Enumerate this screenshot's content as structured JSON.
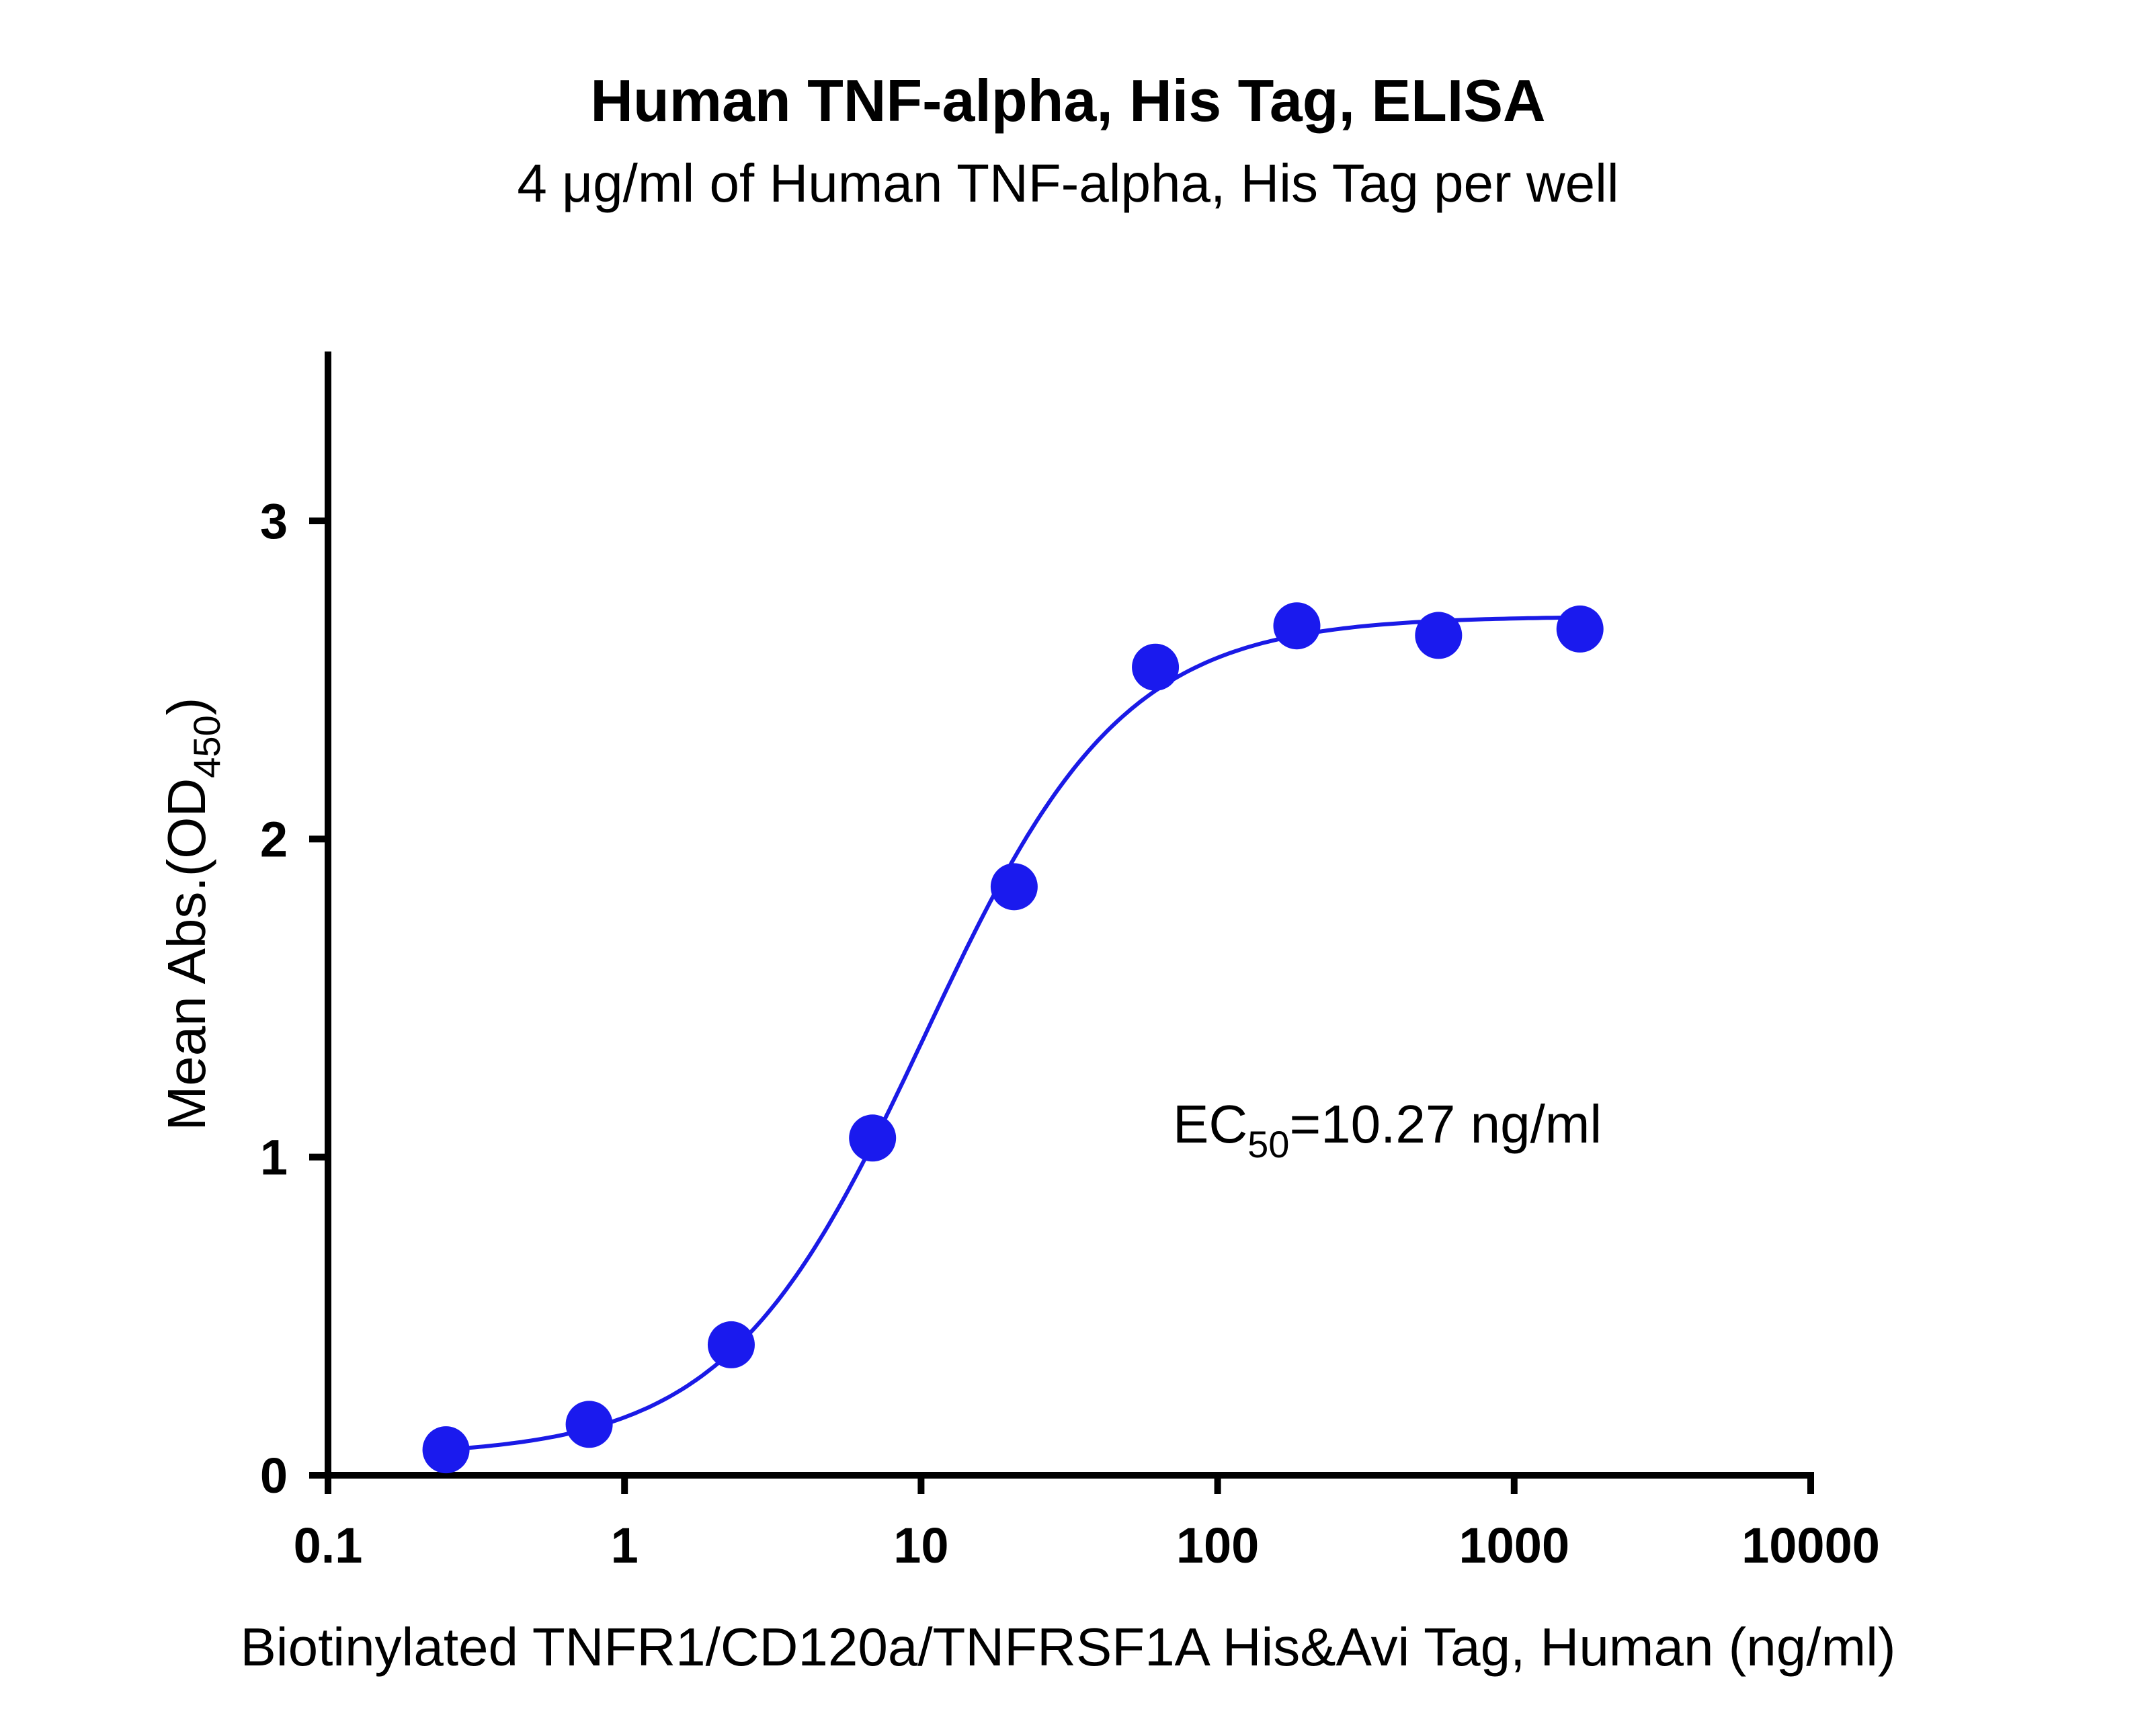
{
  "chart_data": {
    "type": "scatter",
    "title": "Human TNF-alpha, His Tag, ELISA",
    "subtitle": "4 μg/ml of Human TNF-alpha, His Tag per well",
    "xlabel": "Biotinylated TNFR1/CD120a/TNFRSF1A His&Avi Tag, Human (ng/ml)",
    "ylabel_main": "Mean Abs.(OD",
    "ylabel_sub": "450",
    "ylabel_close": ")",
    "x_scale": "log",
    "xlim": [
      0.1,
      10000
    ],
    "ylim": [
      0,
      3.5
    ],
    "x_ticks": [
      {
        "value": 0.1,
        "label": "0.1"
      },
      {
        "value": 1,
        "label": "1"
      },
      {
        "value": 10,
        "label": "10"
      },
      {
        "value": 100,
        "label": "100"
      },
      {
        "value": 1000,
        "label": "1000"
      },
      {
        "value": 10000,
        "label": "10000"
      }
    ],
    "y_ticks": [
      {
        "value": 0,
        "label": "0"
      },
      {
        "value": 1,
        "label": "1"
      },
      {
        "value": 2,
        "label": "2"
      },
      {
        "value": 3,
        "label": "3"
      }
    ],
    "grid": false,
    "series": [
      {
        "x": [
          0.25,
          0.76,
          2.29,
          6.86,
          20.6,
          61.7,
          185,
          556,
          1667
        ],
        "y": [
          0.08,
          0.16,
          0.41,
          1.06,
          1.85,
          2.54,
          2.67,
          2.64,
          2.66
        ]
      }
    ],
    "fit": {
      "model": "4PL",
      "bottom": 0.06,
      "top": 2.7,
      "ec50": 10.27,
      "hill": 1.3
    },
    "annotation": {
      "prefix": "EC",
      "sub": "50",
      "suffix": "=10.27 ng/ml"
    },
    "colors": {
      "points": "#1a1aee",
      "curve": "#1a1ae6",
      "axes": "#000000"
    }
  }
}
